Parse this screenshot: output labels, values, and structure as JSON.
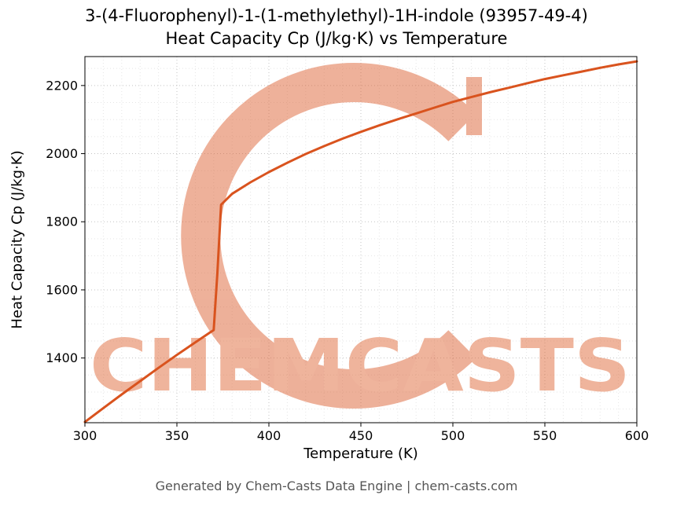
{
  "chart_data": {
    "type": "line",
    "title_line1": "3-(4-Fluorophenyl)-1-(1-methylethyl)-1H-indole (93957-49-4)",
    "title_line2": "Heat Capacity Cp (J/kg·K) vs Temperature",
    "xlabel": "Temperature (K)",
    "ylabel": "Heat Capacity Cp (J/kg·K)",
    "xlim": [
      300,
      600
    ],
    "ylim": [
      1210,
      2285
    ],
    "xticks": [
      300,
      350,
      400,
      450,
      500,
      550,
      600
    ],
    "yticks": [
      1400,
      1600,
      1800,
      2000,
      2200
    ],
    "x_minor_step": 10,
    "y_minor_step": 50,
    "grid": true,
    "line_color": "#d9531e",
    "line_width": 3,
    "series": [
      {
        "name": "Heat Capacity Cp",
        "x": [
          300,
          310,
          320,
          330,
          340,
          350,
          360,
          365,
          368,
          370,
          372,
          374,
          380,
          390,
          400,
          410,
          420,
          430,
          440,
          450,
          460,
          470,
          480,
          490,
          500,
          510,
          520,
          530,
          540,
          550,
          560,
          570,
          580,
          590,
          600
        ],
        "y": [
          1212,
          1253,
          1293,
          1332,
          1371,
          1409,
          1446,
          1464,
          1475,
          1482,
          1650,
          1850,
          1882,
          1916,
          1946,
          1973,
          1999,
          2022,
          2044,
          2064,
          2083,
          2101,
          2118,
          2135,
          2152,
          2166,
          2180,
          2193,
          2206,
          2219,
          2230,
          2241,
          2252,
          2262,
          2271
        ]
      }
    ]
  },
  "watermark": {
    "text": "CHEMCASTS",
    "color": "#e06c3c",
    "ring_color": "#dd6336",
    "opacity": 0.5
  },
  "footer": {
    "text": "Generated by Chem-Casts Data Engine | chem-casts.com"
  }
}
